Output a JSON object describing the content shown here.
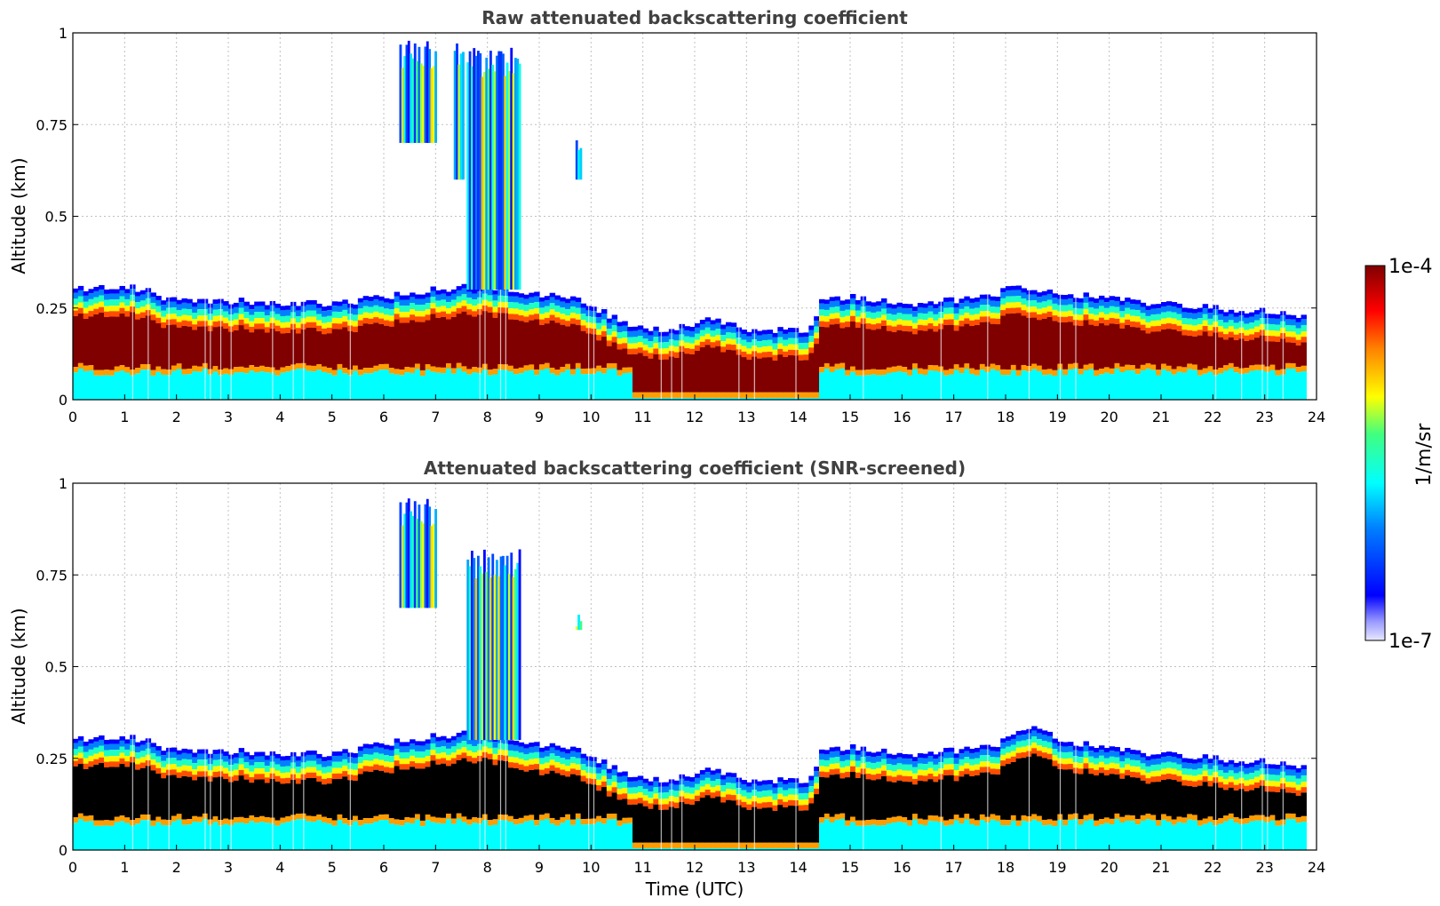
{
  "chart_data": [
    {
      "type": "heatmap",
      "title": "Raw attenuated backscattering coefficient",
      "xlabel": "",
      "ylabel": "Altitude (km)",
      "xlim": [
        0,
        24
      ],
      "ylim": [
        0,
        1
      ],
      "xticks": [
        "0",
        "1",
        "2",
        "3",
        "4",
        "5",
        "6",
        "7",
        "8",
        "9",
        "10",
        "11",
        "12",
        "13",
        "14",
        "15",
        "16",
        "17",
        "18",
        "19",
        "20",
        "21",
        "22",
        "23",
        "24"
      ],
      "yticks": [
        "0",
        "0.25",
        "0.5",
        "0.75",
        "1"
      ],
      "ytick_values": [
        0,
        0.25,
        0.5,
        0.75,
        1
      ],
      "grid": true,
      "screened": false,
      "layer_top_km": [
        [
          0,
          0.3
        ],
        [
          1,
          0.31
        ],
        [
          1.4,
          0.3
        ],
        [
          1.8,
          0.27
        ],
        [
          3,
          0.27
        ],
        [
          5,
          0.26
        ],
        [
          6,
          0.28
        ],
        [
          7,
          0.3
        ],
        [
          8,
          0.31
        ],
        [
          9,
          0.29
        ],
        [
          9.8,
          0.27
        ],
        [
          10.5,
          0.22
        ],
        [
          11,
          0.19
        ],
        [
          12,
          0.2
        ],
        [
          12.3,
          0.22
        ],
        [
          13,
          0.19
        ],
        [
          14.2,
          0.19
        ],
        [
          14.5,
          0.28
        ],
        [
          15,
          0.28
        ],
        [
          16,
          0.26
        ],
        [
          17,
          0.27
        ],
        [
          17.8,
          0.28
        ],
        [
          18.1,
          0.32
        ],
        [
          18.5,
          0.3
        ],
        [
          19,
          0.29
        ],
        [
          20,
          0.28
        ],
        [
          21,
          0.26
        ],
        [
          22,
          0.25
        ],
        [
          23,
          0.24
        ],
        [
          23.8,
          0.23
        ]
      ],
      "aerosol_plumes": [
        {
          "start": 6.3,
          "end": 7.0,
          "bottom": 0.7,
          "top": 0.98
        },
        {
          "start": 7.35,
          "end": 7.55,
          "bottom": 0.6,
          "top": 0.98
        },
        {
          "start": 7.6,
          "end": 8.6,
          "bottom": 0.3,
          "top": 0.96
        },
        {
          "start": 9.7,
          "end": 9.8,
          "bottom": 0.6,
          "top": 0.72
        }
      ]
    },
    {
      "type": "heatmap",
      "title": "Attenuated backscattering coefficient (SNR-screened)",
      "xlabel": "Time (UTC)",
      "ylabel": "Altitude (km)",
      "xlim": [
        0,
        24
      ],
      "ylim": [
        0,
        1
      ],
      "xticks": [
        "0",
        "1",
        "2",
        "3",
        "4",
        "5",
        "6",
        "7",
        "8",
        "9",
        "10",
        "11",
        "12",
        "13",
        "14",
        "15",
        "16",
        "17",
        "18",
        "19",
        "20",
        "21",
        "22",
        "23",
        "24"
      ],
      "yticks": [
        "0",
        "0.25",
        "0.5",
        "0.75",
        "1"
      ],
      "ytick_values": [
        0,
        0.25,
        0.5,
        0.75,
        1
      ],
      "grid": true,
      "screened": true,
      "layer_top_km": [
        [
          0,
          0.3
        ],
        [
          1,
          0.31
        ],
        [
          1.4,
          0.3
        ],
        [
          1.8,
          0.27
        ],
        [
          3,
          0.27
        ],
        [
          5,
          0.26
        ],
        [
          6,
          0.29
        ],
        [
          7,
          0.31
        ],
        [
          8,
          0.32
        ],
        [
          9,
          0.29
        ],
        [
          9.8,
          0.27
        ],
        [
          10.5,
          0.22
        ],
        [
          11,
          0.19
        ],
        [
          12,
          0.2
        ],
        [
          12.3,
          0.22
        ],
        [
          13,
          0.19
        ],
        [
          14.2,
          0.19
        ],
        [
          14.5,
          0.28
        ],
        [
          15,
          0.28
        ],
        [
          16,
          0.26
        ],
        [
          17,
          0.27
        ],
        [
          17.8,
          0.28
        ],
        [
          18.1,
          0.32
        ],
        [
          18.6,
          0.34
        ],
        [
          19,
          0.3
        ],
        [
          20,
          0.28
        ],
        [
          21,
          0.26
        ],
        [
          22,
          0.25
        ],
        [
          23,
          0.24
        ],
        [
          23.8,
          0.23
        ]
      ],
      "aerosol_plumes": [
        {
          "start": 6.3,
          "end": 7.0,
          "bottom": 0.66,
          "top": 0.96
        },
        {
          "start": 7.6,
          "end": 8.6,
          "bottom": 0.3,
          "top": 0.82
        },
        {
          "start": 9.7,
          "end": 9.8,
          "bottom": 0.6,
          "top": 0.68
        }
      ]
    }
  ],
  "colorbar": {
    "label": "1/m/sr",
    "max_label": "1e-4",
    "min_label": "1e-7",
    "max": 0.0001,
    "min": 1e-07,
    "scale": "log",
    "colormap": "jet"
  },
  "colors": {
    "saturated_screened": "#000000",
    "max_value": "#800000",
    "grid": "#c0c0c0",
    "title": "#404040"
  }
}
